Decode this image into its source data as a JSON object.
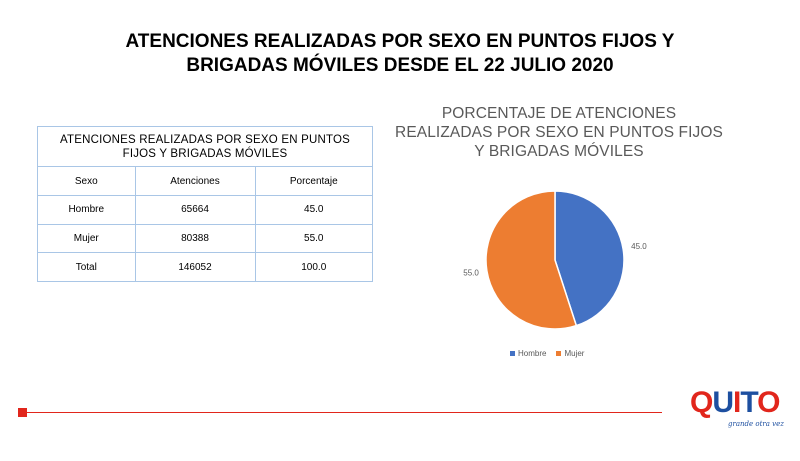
{
  "slide": {
    "title_line1": "ATENCIONES REALIZADAS POR SEXO EN PUNTOS FIJOS Y",
    "title_line2": "BRIGADAS MÓVILES DESDE EL 22 JULIO 2020"
  },
  "table": {
    "caption": "ATENCIONES  REALIZADAS  POR SEXO EN PUNTOS FIJOS Y BRIGADAS  MÓVILES",
    "headers": [
      "Sexo",
      "Atenciones",
      "Porcentaje"
    ],
    "rows": [
      [
        "Hombre",
        "65664",
        "45.0"
      ],
      [
        "Mujer",
        "80388",
        "55.0"
      ],
      [
        "Total",
        "146052",
        "100.0"
      ]
    ]
  },
  "chart_data": {
    "type": "pie",
    "title": "PORCENTAJE DE ATENCIONES REALIZADAS POR SEXO EN PUNTOS FIJOS Y BRIGADAS MÓVILES",
    "categories": [
      "Hombre",
      "Mujer"
    ],
    "values": [
      45.0,
      55.0
    ],
    "data_labels": [
      "45.0",
      "55.0"
    ],
    "colors": [
      "#4472c4",
      "#ed7d31"
    ],
    "legend_position": "bottom"
  },
  "logo": {
    "word": "QUITO",
    "tagline": "grande otra vez",
    "colors": {
      "blue": "#1d4fa0",
      "red": "#e1261c"
    }
  },
  "theme": {
    "accent_red": "#e1261c",
    "table_border": "#a9c6e6"
  }
}
